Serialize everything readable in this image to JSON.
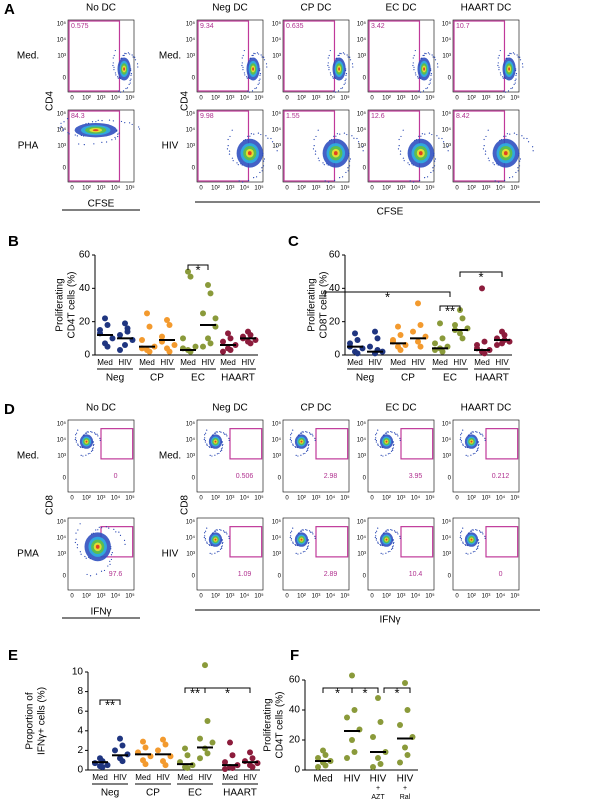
{
  "panel_a": {
    "label": "A",
    "column_titles": [
      "No DC",
      "Neg DC",
      "CP DC",
      "EC DC",
      "HAART DC"
    ],
    "row_labels_left": [
      "Med.",
      "PHA"
    ],
    "row_labels_right": [
      "Med.",
      "HIV"
    ],
    "ylabel": "CD4",
    "xlabel": "CFSE",
    "gates": [
      [
        "0.575",
        "84.3"
      ],
      [
        "9.34",
        "9.98"
      ],
      [
        "0.635",
        "1.55"
      ],
      [
        "3.42",
        "12.6"
      ],
      [
        "10.7",
        "8.42"
      ]
    ]
  },
  "panel_d": {
    "label": "D",
    "column_titles": [
      "No DC",
      "Neg DC",
      "CP DC",
      "EC DC",
      "HAART DC"
    ],
    "row_labels_left": [
      "Med.",
      "PMA"
    ],
    "row_labels_right": [
      "Med.",
      "HIV"
    ],
    "ylabel": "CD8",
    "xlabel": "IFNγ",
    "gates": [
      [
        "0",
        "97.6"
      ],
      [
        "0.506",
        "1.09"
      ],
      [
        "2.98",
        "2.89"
      ],
      [
        "3.95",
        "10.4"
      ],
      [
        "0.212",
        "0"
      ]
    ]
  },
  "flow_axes": {
    "yticks": [
      "10⁵",
      "10⁴",
      "10³",
      "0"
    ],
    "xticks": [
      "0",
      "10²",
      "10³",
      "10⁴",
      "10⁵"
    ]
  },
  "chart_data": [
    {
      "type": "strip",
      "panel_label": "B",
      "ylabel": [
        "Proliferating",
        "CD4T cells (%)"
      ],
      "ylim": [
        0,
        60
      ],
      "yticks": [
        0,
        20,
        40,
        60
      ],
      "categories": [
        "Med",
        "HIV",
        "Med",
        "HIV",
        "Med",
        "HIV",
        "Med",
        "HIV"
      ],
      "groups": [
        "Neg",
        "CP",
        "EC",
        "HAART"
      ],
      "colors": [
        "#1f3580",
        "#1f3580",
        "#f39a2e",
        "#f39a2e",
        "#8a9a3a",
        "#8a9a3a",
        "#8c1c3c",
        "#8c1c3c"
      ],
      "values": [
        [
          22,
          18,
          13,
          10,
          7,
          5,
          15
        ],
        [
          19,
          16,
          12,
          9,
          6,
          14,
          3
        ],
        [
          25,
          17,
          9,
          5,
          3,
          2,
          4
        ],
        [
          21,
          18,
          11,
          6,
          4,
          2,
          8
        ],
        [
          50,
          47,
          10,
          5,
          3,
          2,
          4
        ],
        [
          42,
          37,
          25,
          17,
          10,
          7,
          5,
          22
        ],
        [
          13,
          10,
          8,
          6,
          4,
          3,
          2
        ],
        [
          14,
          12,
          10,
          9,
          8,
          7,
          11
        ]
      ],
      "medians": [
        12,
        10,
        5,
        9,
        3,
        18,
        6,
        10
      ],
      "annotations": [
        "*"
      ]
    },
    {
      "type": "strip",
      "panel_label": "C",
      "ylabel": [
        "Proliferating",
        "CD8T cells (%)"
      ],
      "ylim": [
        0,
        60
      ],
      "yticks": [
        0,
        20,
        40,
        60
      ],
      "categories": [
        "Med",
        "HIV",
        "Med",
        "HIV",
        "Med",
        "HIV",
        "Med",
        "HIV"
      ],
      "groups": [
        "Neg",
        "CP",
        "EC",
        "HAART"
      ],
      "colors": [
        "#1f3580",
        "#1f3580",
        "#f39a2e",
        "#f39a2e",
        "#8a9a3a",
        "#8a9a3a",
        "#8c1c3c",
        "#8c1c3c"
      ],
      "values": [
        [
          13,
          9,
          7,
          4,
          2,
          1,
          5
        ],
        [
          14,
          10,
          5,
          2,
          1,
          3
        ],
        [
          17,
          12,
          9,
          6,
          5,
          3,
          8
        ],
        [
          31,
          18,
          14,
          11,
          8,
          5
        ],
        [
          19,
          10,
          7,
          5,
          4,
          2,
          3
        ],
        [
          27,
          22,
          18,
          16,
          13,
          10,
          15
        ],
        [
          40,
          8,
          6,
          3,
          2,
          1,
          4
        ],
        [
          14,
          12,
          10,
          8,
          7,
          9,
          6
        ]
      ],
      "medians": [
        5,
        2,
        7,
        10,
        4,
        15,
        3,
        9
      ],
      "annotations": [
        "*",
        "**",
        "*"
      ]
    },
    {
      "type": "strip",
      "panel_label": "E",
      "ylabel": [
        "Proportion of",
        "IFNγ+ cells (%)"
      ],
      "ylim": [
        0,
        10
      ],
      "yticks": [
        0,
        2,
        4,
        6,
        8,
        10
      ],
      "categories": [
        "Med",
        "HIV",
        "Med",
        "HIV",
        "Med",
        "HIV",
        "Med",
        "HIV"
      ],
      "groups": [
        "Neg",
        "CP",
        "EC",
        "HAART"
      ],
      "colors": [
        "#1f3580",
        "#1f3580",
        "#f39a2e",
        "#f39a2e",
        "#8a9a3a",
        "#8a9a3a",
        "#8c1c3c",
        "#8c1c3c"
      ],
      "values": [
        [
          1.2,
          0.9,
          0.7,
          0.5,
          0.4,
          0.3
        ],
        [
          3.2,
          2.5,
          2,
          1.6,
          1.2,
          0.9
        ],
        [
          2.9,
          2.3,
          1.8,
          1.4,
          1,
          0.6
        ],
        [
          3.1,
          2.6,
          2,
          1.4,
          0.9,
          0.5
        ],
        [
          2.2,
          1.5,
          0.8,
          0.5,
          0.3,
          0.2
        ],
        [
          10.7,
          5,
          3.2,
          2.8,
          2.2,
          1.7,
          1.2
        ],
        [
          2.8,
          1.5,
          0.8,
          0.5,
          0.3,
          0.2,
          0.1
        ],
        [
          1.8,
          1.2,
          0.9,
          0.7,
          0.5,
          0.3
        ]
      ],
      "medians": [
        0.8,
        1.5,
        1.6,
        1.6,
        0.6,
        2.3,
        0.5,
        0.8
      ],
      "annotations": [
        "**",
        "**",
        "*"
      ]
    },
    {
      "type": "strip",
      "panel_label": "F",
      "ylabel": [
        "Proliferating",
        "CD4T cells (%)"
      ],
      "ylim": [
        0,
        60
      ],
      "yticks": [
        0,
        20,
        40,
        60
      ],
      "categories": [
        [
          "Med"
        ],
        [
          "HIV"
        ],
        [
          "HIV",
          "+",
          "AZT"
        ],
        [
          "HIV",
          "+",
          "Ral"
        ]
      ],
      "colors": [
        "#8a9a3a",
        "#8a9a3a",
        "#8a9a3a",
        "#8a9a3a"
      ],
      "values": [
        [
          13,
          10,
          8,
          6,
          5,
          3,
          2
        ],
        [
          63,
          40,
          35,
          27,
          20,
          12,
          8
        ],
        [
          48,
          32,
          22,
          12,
          8,
          4,
          2
        ],
        [
          58,
          40,
          30,
          22,
          15,
          10,
          5
        ]
      ],
      "medians": [
        6,
        26,
        12,
        21
      ],
      "annotations": [
        "*",
        "*",
        "*"
      ]
    }
  ]
}
